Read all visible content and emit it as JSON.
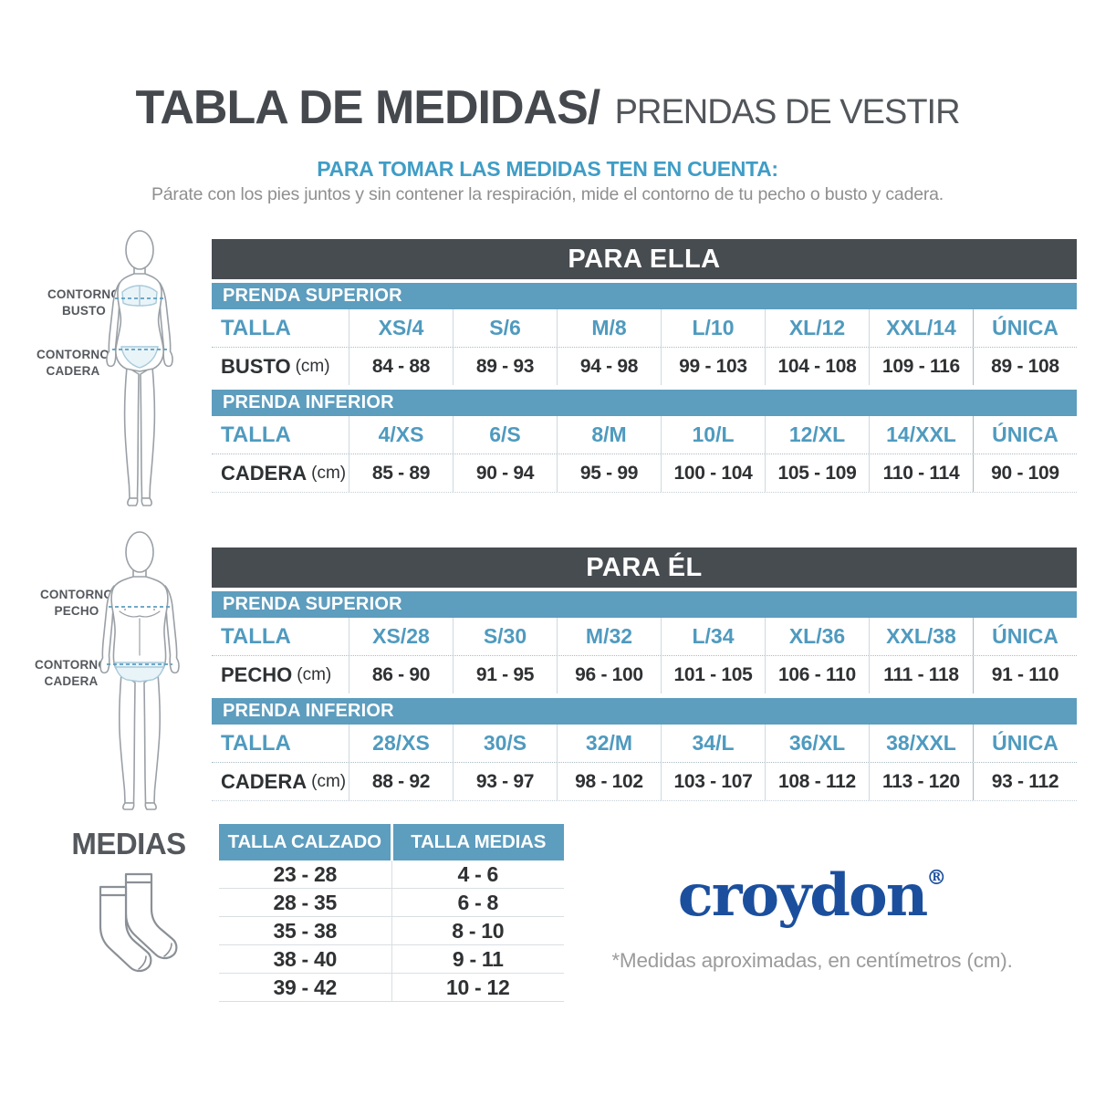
{
  "header": {
    "title_main": "TABLA DE MEDIDAS/",
    "title_sub": "PRENDAS DE VESTIR",
    "tips_heading": "PARA TOMAR LAS MEDIDAS TEN EN CUENTA:",
    "tips_text": "Párate con los pies juntos y sin contener la respiración, mide el contorno de tu pecho o busto y cadera."
  },
  "figures": {
    "female": {
      "label_top": "CONTORNO BUSTO",
      "label_bottom": "CONTORNO CADERA"
    },
    "male": {
      "label_top": "CONTORNO PECHO",
      "label_bottom": "CONTORNO CADERA"
    }
  },
  "size_tables": [
    {
      "title": "PARA ELLA",
      "sections": [
        {
          "band": "PRENDA SUPERIOR",
          "size_label": "TALLA",
          "sizes": [
            "XS/4",
            "S/6",
            "M/8",
            "L/10",
            "XL/12",
            "XXL/14",
            "ÚNICA"
          ],
          "measure_label": "BUSTO",
          "measure_unit": "(cm)",
          "values": [
            "84 - 88",
            "89 - 93",
            "94 - 98",
            "99 - 103",
            "104 - 108",
            "109 - 116",
            "89 - 108"
          ]
        },
        {
          "band": "PRENDA INFERIOR",
          "size_label": "TALLA",
          "sizes": [
            "4/XS",
            "6/S",
            "8/M",
            "10/L",
            "12/XL",
            "14/XXL",
            "ÚNICA"
          ],
          "measure_label": "CADERA",
          "measure_unit": "(cm)",
          "values": [
            "85 - 89",
            "90 - 94",
            "95 - 99",
            "100 - 104",
            "105 - 109",
            "110 - 114",
            "90 - 109"
          ]
        }
      ]
    },
    {
      "title": "PARA ÉL",
      "sections": [
        {
          "band": "PRENDA SUPERIOR",
          "size_label": "TALLA",
          "sizes": [
            "XS/28",
            "S/30",
            "M/32",
            "L/34",
            "XL/36",
            "XXL/38",
            "ÚNICA"
          ],
          "measure_label": "PECHO",
          "measure_unit": "(cm)",
          "values": [
            "86 - 90",
            "91 - 95",
            "96 - 100",
            "101 - 105",
            "106 - 110",
            "111 - 118",
            "91 - 110"
          ]
        },
        {
          "band": "PRENDA INFERIOR",
          "size_label": "TALLA",
          "sizes": [
            "28/XS",
            "30/S",
            "32/M",
            "34/L",
            "36/XL",
            "38/XXL",
            "ÚNICA"
          ],
          "measure_label": "CADERA",
          "measure_unit": "(cm)",
          "values": [
            "88 - 92",
            "93 - 97",
            "98 - 102",
            "103 - 107",
            "108 - 112",
            "113 - 120",
            "93 - 112"
          ]
        }
      ]
    }
  ],
  "socks": {
    "title": "MEDIAS",
    "col_shoe": "TALLA CALZADO",
    "col_sock": "TALLA MEDIAS",
    "shoe_sizes": [
      "23 - 28",
      "28 - 35",
      "35 - 38",
      "38 - 40",
      "39 - 42"
    ],
    "sock_sizes": [
      "4 - 6",
      "6 - 8",
      "8 - 10",
      "9 - 11",
      "10 - 12"
    ]
  },
  "footer": {
    "brand": "croydon",
    "registered": "®",
    "note": "*Medidas aproximadas, en centímetros (cm)."
  },
  "colors": {
    "accent_blue": "#5d9dbe",
    "text_blue": "#4f9abf",
    "header_dark": "#474c51",
    "brand_blue": "#1b4f9e",
    "text_dark": "#2f3133",
    "text_gray": "#8f8f8f"
  }
}
